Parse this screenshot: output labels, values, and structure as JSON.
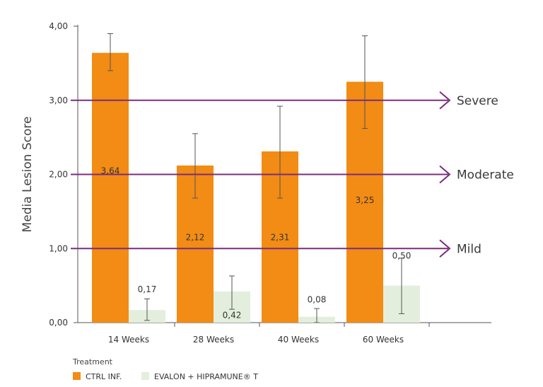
{
  "chart_data": {
    "type": "bar",
    "ylabel": "Media Lesion Score",
    "ylim": [
      0,
      4
    ],
    "yticks": [
      "0,00",
      "1,00",
      "2,00",
      "3,00",
      "4,00"
    ],
    "categories": [
      "14 Weeks",
      "28 Weeks",
      "40 Weeks",
      "60 Weeks"
    ],
    "series": [
      {
        "name": "CTRL INF.",
        "color": "#f28c14",
        "values": [
          3.64,
          2.12,
          2.31,
          3.25
        ],
        "labels": [
          "3,64",
          "2,12",
          "2,31",
          "3,25"
        ],
        "error_low": [
          3.4,
          1.68,
          1.68,
          2.62
        ],
        "error_high": [
          3.9,
          2.55,
          2.92,
          3.87
        ]
      },
      {
        "name": "EVALON + HIPRAMUNE® T",
        "color": "#e3efdc",
        "values": [
          0.17,
          0.42,
          0.08,
          0.5
        ],
        "labels": [
          "0,17",
          "0,42",
          "0,08",
          "0,50"
        ],
        "error_low": [
          0.03,
          0.18,
          0.0,
          0.12
        ],
        "error_high": [
          0.32,
          0.63,
          0.19,
          0.87
        ]
      }
    ],
    "thresholds": [
      {
        "label": "Severe",
        "value": 3.0
      },
      {
        "label": "Moderate",
        "value": 2.0
      },
      {
        "label": "Mild",
        "value": 1.0
      }
    ],
    "threshold_color": "#7b2d7e",
    "legend": {
      "title": "Treatment",
      "position": "bottom-left"
    }
  }
}
